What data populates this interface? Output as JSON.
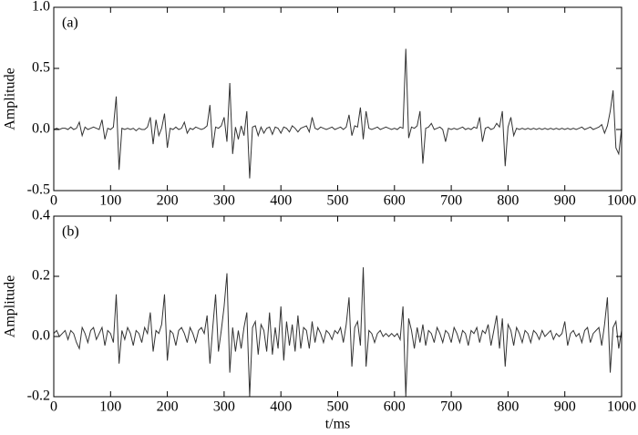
{
  "chart_data": [
    {
      "type": "line",
      "annotation": "(a)",
      "y_label": "Amplitude",
      "x": [
        0,
        5,
        10,
        15,
        20,
        25,
        30,
        35,
        40,
        45,
        50,
        55,
        60,
        65,
        70,
        75,
        80,
        85,
        90,
        95,
        100,
        105,
        110,
        115,
        120,
        125,
        130,
        135,
        140,
        145,
        150,
        155,
        160,
        165,
        170,
        175,
        180,
        185,
        190,
        195,
        200,
        205,
        210,
        215,
        220,
        225,
        230,
        235,
        240,
        245,
        250,
        255,
        260,
        265,
        270,
        275,
        280,
        285,
        290,
        295,
        300,
        305,
        310,
        315,
        320,
        325,
        330,
        335,
        340,
        345,
        350,
        355,
        360,
        365,
        370,
        375,
        380,
        385,
        390,
        395,
        400,
        405,
        410,
        415,
        420,
        425,
        430,
        435,
        440,
        445,
        450,
        455,
        460,
        465,
        470,
        475,
        480,
        485,
        490,
        495,
        500,
        505,
        510,
        515,
        520,
        525,
        530,
        535,
        540,
        545,
        550,
        555,
        560,
        565,
        570,
        575,
        580,
        585,
        590,
        595,
        600,
        605,
        610,
        615,
        620,
        625,
        630,
        635,
        640,
        645,
        650,
        655,
        660,
        665,
        670,
        675,
        680,
        685,
        690,
        695,
        700,
        705,
        710,
        715,
        720,
        725,
        730,
        735,
        740,
        745,
        750,
        755,
        760,
        765,
        770,
        775,
        780,
        785,
        790,
        795,
        800,
        805,
        810,
        815,
        820,
        825,
        830,
        835,
        840,
        845,
        850,
        855,
        860,
        865,
        870,
        875,
        880,
        885,
        890,
        895,
        900,
        905,
        910,
        915,
        920,
        925,
        930,
        935,
        940,
        945,
        950,
        955,
        960,
        965,
        970,
        975,
        980,
        985,
        990,
        995,
        1000
      ],
      "series": [
        {
          "color": "#333333",
          "values": [
            0,
            0.01,
            0,
            0.01,
            0.01,
            0,
            0.02,
            0,
            0.01,
            0.06,
            -0.05,
            0.02,
            0,
            0.01,
            0.02,
            0.01,
            0,
            0.08,
            -0.08,
            0.01,
            0,
            0.02,
            0.27,
            -0.33,
            0.01,
            0,
            0.01,
            0,
            0.01,
            -0.01,
            0.01,
            0,
            0,
            0.02,
            0.1,
            -0.12,
            0.08,
            -0.05,
            0.01,
            0.13,
            -0.15,
            0.01,
            0,
            0.02,
            0,
            0.01,
            0.06,
            -0.03,
            0.01,
            0,
            0.02,
            0.01,
            0,
            0.01,
            0.03,
            0.2,
            -0.15,
            0.02,
            0.01,
            0.03,
            0.1,
            -0.1,
            0.38,
            -0.2,
            0.02,
            -0.08,
            0.03,
            -0.05,
            0.15,
            -0.4,
            0.02,
            0.03,
            -0.05,
            0.02,
            -0.03,
            0.01,
            0.02,
            -0.04,
            0.02,
            0.01,
            -0.03,
            0.02,
            0.01,
            -0.02,
            0.03,
            0.01,
            -0.02,
            0.01,
            0.02,
            0.03,
            -0.02,
            0.1,
            0.01,
            0,
            0.02,
            0.01,
            0,
            0.01,
            0.02,
            0,
            0.01,
            0.02,
            0,
            0.02,
            0.12,
            -0.05,
            0.03,
            0.02,
            0.18,
            -0.08,
            0.15,
            0.01,
            0,
            0.01,
            0.02,
            0,
            0.01,
            0.02,
            0.01,
            0,
            0.01,
            0,
            0.02,
            0.01,
            0.66,
            -0.07,
            0.02,
            0.01,
            0.03,
            0.15,
            -0.28,
            0.01,
            0.02,
            0.05,
            0,
            0.01,
            0.02,
            0,
            -0.1,
            0.01,
            0,
            0.01,
            0,
            0.01,
            0.02,
            0,
            0.01,
            0,
            0.02,
            0.01,
            0.1,
            -0.1,
            0.01,
            0.02,
            0,
            0.01,
            0.05,
            0.02,
            0.15,
            -0.3,
            0.02,
            0.1,
            -0.05,
            0.01,
            0,
            0.01,
            0,
            0.01,
            0,
            0.01,
            0,
            0.01,
            0,
            0.01,
            0,
            0.01,
            0,
            0.01,
            0,
            0.01,
            0,
            0.01,
            0,
            0.01,
            0,
            0.01,
            0.02,
            0,
            0.01,
            0.02,
            0,
            0.01,
            0.02,
            0.04,
            -0.03,
            0.03,
            0.15,
            0.32,
            -0.15,
            -0.2,
            0.01
          ]
        }
      ],
      "xlim": [
        0,
        1000
      ],
      "xticks": [
        0,
        100,
        200,
        300,
        400,
        500,
        600,
        700,
        800,
        900,
        1000
      ],
      "ylim": [
        -0.5,
        1.0
      ],
      "yticks": [
        {
          "value": -0.5,
          "label": "-0.5"
        },
        {
          "value": 0,
          "label": "0.0"
        },
        {
          "value": 0.5,
          "label": "0.5"
        },
        {
          "value": 1,
          "label": "1.0"
        }
      ]
    },
    {
      "type": "line",
      "annotation": "(b)",
      "y_label": "Amplitude",
      "x_label": "t/ms",
      "x": [
        0,
        5,
        10,
        15,
        20,
        25,
        30,
        35,
        40,
        45,
        50,
        55,
        60,
        65,
        70,
        75,
        80,
        85,
        90,
        95,
        100,
        105,
        110,
        115,
        120,
        125,
        130,
        135,
        140,
        145,
        150,
        155,
        160,
        165,
        170,
        175,
        180,
        185,
        190,
        195,
        200,
        205,
        210,
        215,
        220,
        225,
        230,
        235,
        240,
        245,
        250,
        255,
        260,
        265,
        270,
        275,
        280,
        285,
        290,
        295,
        300,
        305,
        310,
        315,
        320,
        325,
        330,
        335,
        340,
        345,
        350,
        355,
        360,
        365,
        370,
        375,
        380,
        385,
        390,
        395,
        400,
        405,
        410,
        415,
        420,
        425,
        430,
        435,
        440,
        445,
        450,
        455,
        460,
        465,
        470,
        475,
        480,
        485,
        490,
        495,
        500,
        505,
        510,
        515,
        520,
        525,
        530,
        535,
        540,
        545,
        550,
        555,
        560,
        565,
        570,
        575,
        580,
        585,
        590,
        595,
        600,
        605,
        610,
        615,
        620,
        625,
        630,
        635,
        640,
        645,
        650,
        655,
        660,
        665,
        670,
        675,
        680,
        685,
        690,
        695,
        700,
        705,
        710,
        715,
        720,
        725,
        730,
        735,
        740,
        745,
        750,
        755,
        760,
        765,
        770,
        775,
        780,
        785,
        790,
        795,
        800,
        805,
        810,
        815,
        820,
        825,
        830,
        835,
        840,
        845,
        850,
        855,
        860,
        865,
        870,
        875,
        880,
        885,
        890,
        895,
        900,
        905,
        910,
        915,
        920,
        925,
        930,
        935,
        940,
        945,
        950,
        955,
        960,
        965,
        970,
        975,
        980,
        985,
        990,
        995,
        1000
      ],
      "series": [
        {
          "color": "#333333",
          "values": [
            0.01,
            0.02,
            0,
            0.01,
            0.02,
            -0.01,
            0.02,
            0.01,
            -0.02,
            -0.04,
            0.03,
            0.01,
            -0.02,
            0.02,
            0.03,
            -0.01,
            0.01,
            0.03,
            -0.03,
            0.02,
            0.01,
            -0.02,
            0.14,
            -0.09,
            0.02,
            -0.01,
            0.03,
            0.01,
            -0.03,
            0.02,
            0.01,
            -0.02,
            0.03,
            0.01,
            0.08,
            -0.05,
            0.02,
            0.01,
            0.04,
            0.14,
            -0.08,
            0.02,
            0.01,
            -0.03,
            0.02,
            0.03,
            0.01,
            -0.02,
            0.03,
            0.01,
            -0.02,
            0.02,
            0.03,
            0.01,
            0.07,
            -0.09,
            0.03,
            0.14,
            -0.05,
            0.02,
            0.1,
            0.21,
            -0.12,
            0.03,
            -0.05,
            0.02,
            -0.04,
            0.03,
            0.08,
            -0.2,
            0.03,
            0.05,
            -0.06,
            0.04,
            0.02,
            -0.05,
            0.08,
            -0.06,
            0.03,
            -0.04,
            0.1,
            -0.08,
            0.05,
            -0.03,
            0.04,
            -0.05,
            0.07,
            -0.04,
            0.03,
            0.02,
            -0.04,
            0.05,
            -0.02,
            0.03,
            0.01,
            -0.02,
            0.02,
            0.01,
            -0.01,
            0.02,
            0.01,
            0.03,
            -0.02,
            0.04,
            0.13,
            -0.1,
            0.03,
            0.05,
            -0.03,
            0.23,
            -0.1,
            0.02,
            0.01,
            -0.02,
            0.01,
            0.02,
            0,
            0.01,
            0,
            0.01,
            0,
            0.01,
            -0.01,
            0.1,
            -0.2,
            0.06,
            0.02,
            -0.04,
            0.03,
            -0.02,
            0.04,
            -0.03,
            0.02,
            0.01,
            -0.02,
            0.03,
            0.01,
            -0.02,
            0.02,
            0.01,
            -0.02,
            0.03,
            0.01,
            -0.02,
            0.02,
            0.01,
            -0.03,
            0.02,
            0.01,
            0.03,
            -0.02,
            0.02,
            0.01,
            0.04,
            -0.03,
            0.02,
            0.07,
            -0.04,
            0.06,
            -0.1,
            0.04,
            0.02,
            -0.03,
            0.03,
            0.01,
            -0.02,
            0.02,
            0.01,
            -0.02,
            0.02,
            0.01,
            -0.01,
            0.02,
            0,
            0.01,
            0.02,
            -0.01,
            0.01,
            0,
            0.01,
            0.05,
            -0.03,
            0.01,
            0.02,
            0,
            0.01,
            -0.02,
            0.02,
            0.03,
            -0.02,
            0.01,
            0.02,
            0.03,
            -0.03,
            0.04,
            0.13,
            -0.12,
            0.03,
            0.05,
            -0.04,
            0.02
          ]
        }
      ],
      "xlim": [
        0,
        1000
      ],
      "xticks": [
        0,
        100,
        200,
        300,
        400,
        500,
        600,
        700,
        800,
        900,
        1000
      ],
      "ylim": [
        -0.2,
        0.4
      ],
      "yticks": [
        -0.2,
        {
          "value": 0,
          "label": "0.0"
        },
        0.2,
        0.4
      ]
    }
  ]
}
